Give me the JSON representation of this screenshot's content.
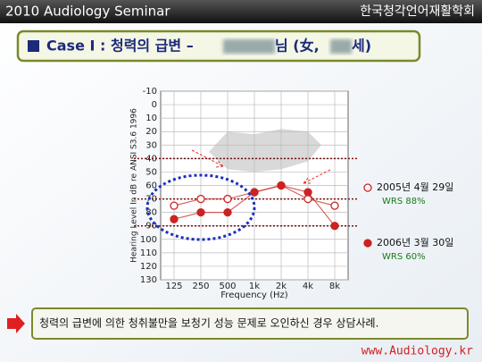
{
  "header": {
    "left": "2010 Audiology Seminar",
    "right": "한국청각언어재활학회"
  },
  "slide_title": {
    "prefix": "Case I : 청력의 급변 –",
    "middle": "님 (女,",
    "suffix": "세)"
  },
  "chart_data": {
    "type": "audiogram",
    "y_axis_label": "Hearing Level In dB re ANSI S3.6 1996",
    "x_axis_label": "Frequency (Hz)",
    "categories": [
      "125",
      "250",
      "500",
      "1k",
      "2k",
      "4k",
      "8k"
    ],
    "ylim": [
      -10,
      130
    ],
    "y_inverted": true,
    "yticks": [
      -10,
      0,
      10,
      20,
      30,
      40,
      50,
      60,
      70,
      80,
      90,
      100,
      110,
      120,
      130
    ],
    "reference_lines": [
      40,
      70,
      90
    ],
    "grid": true,
    "series": [
      {
        "name": "2005년 4월 29일",
        "note": "WRS 88%",
        "color": "#cc2222",
        "marker": "open",
        "values": [
          75,
          70,
          70,
          65,
          60,
          70,
          75
        ]
      },
      {
        "name": "2006년 3월 30일",
        "note": "WRS 60%",
        "color": "#cc2222",
        "marker": "filled",
        "values": [
          85,
          80,
          80,
          65,
          60,
          65,
          90
        ]
      }
    ]
  },
  "footer": {
    "note": "청력의 급변에 의한 청취불만을 보청기 성능 문제로 오인하신 경우 상담사례.",
    "url": "www.Audiology.kr"
  }
}
